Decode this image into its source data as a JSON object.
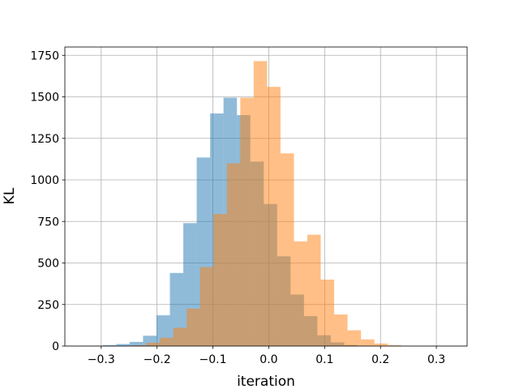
{
  "chart_data": {
    "type": "bar",
    "title": "",
    "xlabel": "iteration",
    "ylabel": "KL",
    "xlim": [
      -0.365,
      0.355
    ],
    "ylim": [
      0,
      1800
    ],
    "xticks": [
      -0.3,
      -0.2,
      -0.1,
      0.0,
      0.1,
      0.2,
      0.3
    ],
    "xtick_labels": [
      "−0.3",
      "−0.2",
      "−0.1",
      "0.0",
      "0.1",
      "0.2",
      "0.3"
    ],
    "yticks": [
      0,
      250,
      500,
      750,
      1000,
      1250,
      1500,
      1750
    ],
    "ytick_labels": [
      "0",
      "250",
      "500",
      "750",
      "1000",
      "1250",
      "1500",
      "1750"
    ],
    "grid": true,
    "legend": false,
    "series": [
      {
        "color": "#1f77b4",
        "alpha": 0.5,
        "bin_edges": [
          -0.345,
          -0.321,
          -0.297,
          -0.273,
          -0.249,
          -0.225,
          -0.201,
          -0.177,
          -0.153,
          -0.129,
          -0.105,
          -0.081,
          -0.057,
          -0.033,
          -0.009,
          0.015,
          0.039,
          0.063,
          0.087,
          0.111,
          0.135,
          0.159
        ],
        "counts": [
          1,
          2,
          5,
          12,
          25,
          62,
          185,
          440,
          740,
          1135,
          1400,
          1495,
          1390,
          1110,
          855,
          540,
          310,
          180,
          65,
          22,
          6
        ]
      },
      {
        "color": "#ff7f0e",
        "alpha": 0.5,
        "bin_edges": [
          -0.243,
          -0.219,
          -0.195,
          -0.171,
          -0.147,
          -0.123,
          -0.099,
          -0.075,
          -0.051,
          -0.027,
          -0.003,
          0.021,
          0.045,
          0.069,
          0.093,
          0.117,
          0.141,
          0.165,
          0.189,
          0.213,
          0.237
        ],
        "counts": [
          5,
          20,
          50,
          110,
          225,
          475,
          795,
          1100,
          1495,
          1715,
          1560,
          1160,
          630,
          670,
          400,
          190,
          95,
          40,
          15,
          5
        ]
      }
    ]
  }
}
